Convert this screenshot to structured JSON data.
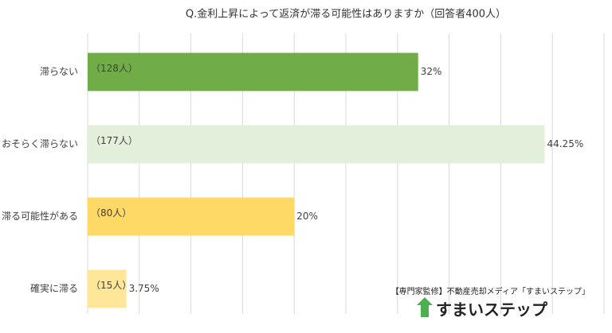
{
  "chart_data": {
    "type": "barh",
    "title": "Q.金利上昇によって返済が滞る可能性はありますか（回答者400人）",
    "categories": [
      "滞らない",
      "おそらく滞らない",
      "滞る可能性がある",
      "確実に滞る"
    ],
    "values": [
      32,
      44.25,
      20,
      3.75
    ],
    "value_labels": [
      "32%",
      "44.25%",
      "20%",
      "3.75%"
    ],
    "count_labels": [
      "（128人）",
      "（177人）",
      "（80人）",
      "（15人）"
    ],
    "colors": [
      "#70ad47",
      "#e2efda",
      "#ffd966",
      "#ffe699"
    ],
    "xlim": [
      0,
      50
    ],
    "xticks": [
      0,
      5,
      10,
      15,
      20,
      25,
      30,
      35,
      40,
      45,
      50
    ],
    "grid": true,
    "credit": "【専門家監修】不動産売却メディア「すまいステップ」",
    "logo": "すまいステップ"
  }
}
